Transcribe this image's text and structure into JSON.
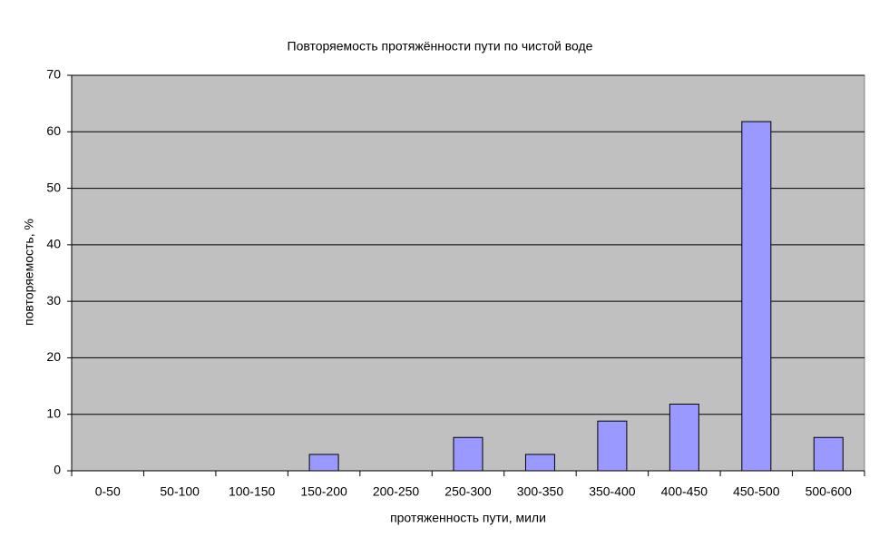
{
  "chart_data": {
    "type": "bar",
    "title": "Повторяемость протяжённости пути по чистой воде",
    "x_label": "протяженность пути, мили",
    "y_label": "повторяемость, %",
    "categories": [
      "0-50",
      "50-100",
      "100-150",
      "150-200",
      "200-250",
      "250-300",
      "300-350",
      "350-400",
      "400-450",
      "450-500",
      "500-600"
    ],
    "values": [
      0,
      0,
      0,
      2.9,
      0,
      5.9,
      2.9,
      8.8,
      11.8,
      61.8,
      5.9
    ],
    "color": "#9999ff",
    "ylim": [
      0,
      70
    ],
    "yticks": [
      0,
      10,
      20,
      30,
      40,
      50,
      60,
      70
    ],
    "grid": true
  }
}
